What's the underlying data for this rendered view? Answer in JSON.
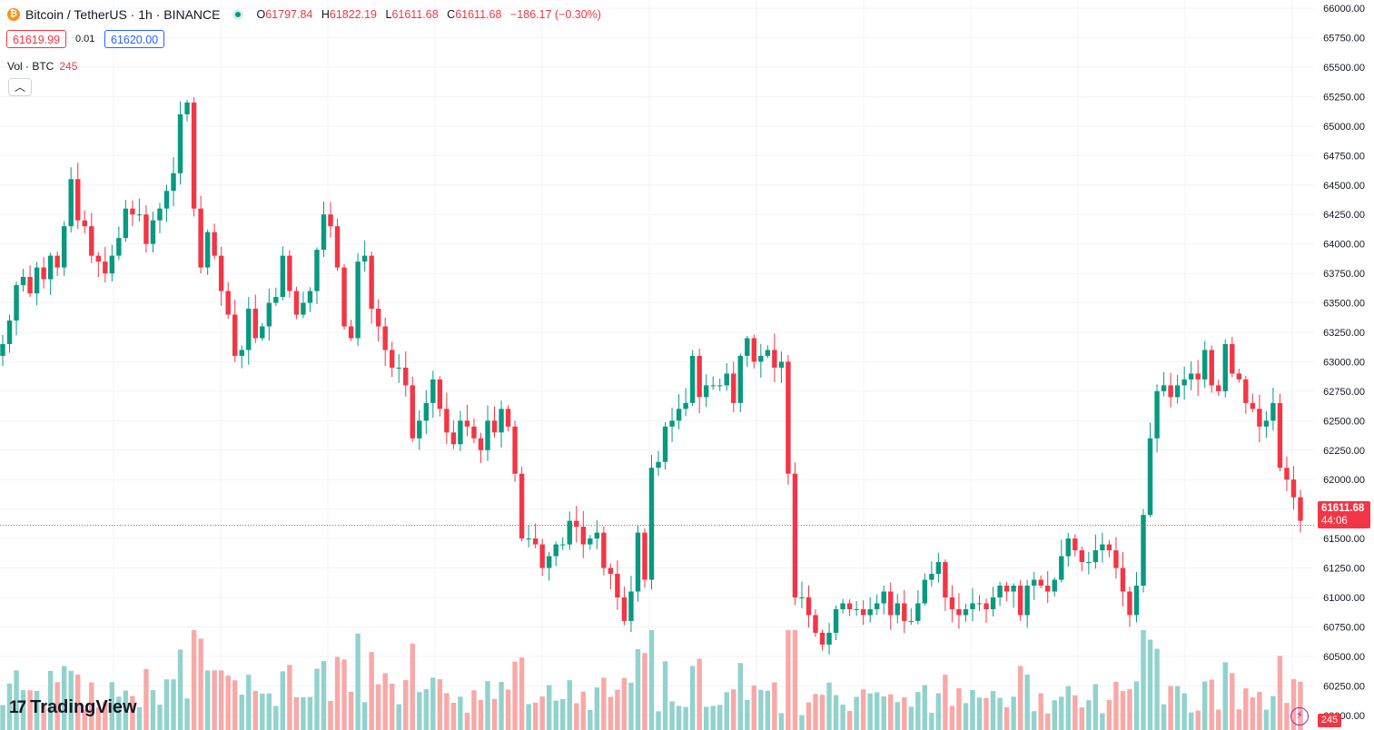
{
  "header": {
    "symbol": "Bitcoin / TetherUS · 1h · BINANCE",
    "coin_icon": "bitcoin-icon",
    "ohlc": {
      "o_label": "O",
      "o": "61797.84",
      "h_label": "H",
      "h": "61822.19",
      "l_label": "L",
      "l": "61611.68",
      "c_label": "C",
      "c": "61611.68",
      "change": "−186.17 (−0.30%)"
    }
  },
  "quote": {
    "bid": "61619.99",
    "spread": "0.01",
    "ask": "61620.00"
  },
  "volume_legend": {
    "label": "Vol · BTC",
    "value": "245"
  },
  "collapse_icon": "chevron-up-icon",
  "brand": {
    "name": "TradingView",
    "icon": "tradingview-logo-icon"
  },
  "last_price": {
    "price": "61611.68",
    "countdown": "44:06"
  },
  "volume_last": "245",
  "colors": {
    "up": "#089981",
    "down": "#f23645",
    "up_vol": "#92d2cc",
    "down_vol": "#f7a9a7",
    "grid": "#f0f3fa"
  },
  "chart_data": {
    "type": "candlestick",
    "interval": "1h",
    "y_axis": {
      "min": 59875,
      "max": 66070,
      "ticks": [
        60000,
        60250,
        60500,
        60750,
        61000,
        61250,
        61500,
        61750,
        62000,
        62250,
        62500,
        62750,
        63000,
        63250,
        63500,
        63750,
        64000,
        64250,
        64500,
        64750,
        65000,
        65250,
        65500,
        65750,
        66000
      ]
    },
    "last_price_line": 61611.68,
    "closes": [
      63150,
      63350,
      63650,
      63720,
      63580,
      63800,
      63700,
      63900,
      63800,
      64150,
      64550,
      64200,
      64150,
      63900,
      63850,
      63750,
      63900,
      64050,
      64300,
      64250,
      64250,
      64000,
      64200,
      64300,
      64450,
      64600,
      65100,
      65200,
      64300,
      63800,
      64100,
      63900,
      63600,
      63400,
      63050,
      63100,
      63450,
      63200,
      63300,
      63500,
      63550,
      63900,
      63600,
      63400,
      63500,
      63600,
      63950,
      64250,
      64150,
      63800,
      63300,
      63200,
      63850,
      63900,
      63450,
      63300,
      63100,
      62950,
      62950,
      62800,
      62350,
      62500,
      62650,
      62850,
      62600,
      62400,
      62300,
      62500,
      62450,
      62350,
      62250,
      62500,
      62400,
      62600,
      62450,
      62050,
      61500,
      61500,
      61450,
      61250,
      61350,
      61450,
      61450,
      61650,
      61600,
      61450,
      61500,
      61550,
      61250,
      61200,
      61000,
      60800,
      61050,
      61550,
      61150,
      62100,
      62150,
      62450,
      62500,
      62600,
      62650,
      63050,
      62700,
      62800,
      62800,
      62800,
      62900,
      62650,
      63050,
      63200,
      63000,
      63050,
      63100,
      62950,
      63000,
      62050,
      61000,
      61000,
      60850,
      60700,
      60600,
      60700,
      60900,
      60950,
      60900,
      60900,
      60850,
      60900,
      60950,
      61050,
      60850,
      60950,
      60800,
      60800,
      60950,
      61150,
      61200,
      61300,
      61000,
      60900,
      60850,
      60900,
      60950,
      60950,
      60900,
      61000,
      61100,
      61050,
      61100,
      60850,
      61100,
      61150,
      61100,
      61050,
      61150,
      61350,
      61500,
      61400,
      61300,
      61300,
      61400,
      61450,
      61400,
      61250,
      61050,
      60850,
      61100,
      61700,
      62350,
      62750,
      62800,
      62700,
      62800,
      62850,
      62900,
      62850,
      63100,
      62800,
      62750,
      63150,
      62900,
      62850,
      62650,
      62600,
      62450,
      62500,
      62650,
      62100,
      62000,
      61850,
      61650
    ]
  }
}
